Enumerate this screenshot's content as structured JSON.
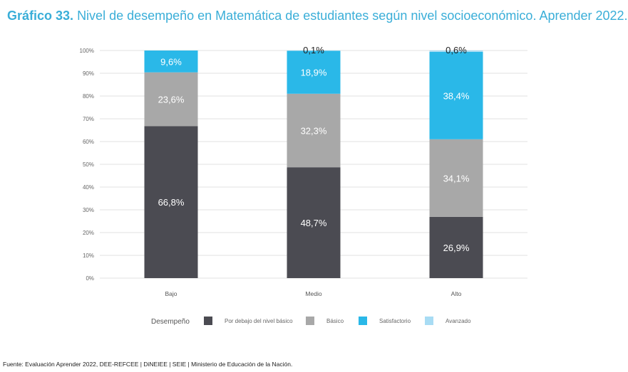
{
  "title_bold": "Gráfico 33.",
  "title_rest": "Nivel de desempeño en Matemática de estudiantes según nivel socioeconómico. Aprender 2022.",
  "source": "Fuente: Evaluación Aprender 2022, DEE-REFCEE | DiNEIEE | SEIE | Ministerio de Educación de la Nación.",
  "chart_data": {
    "type": "bar",
    "stacked": true,
    "categories": [
      "Bajo",
      "Medio",
      "Alto"
    ],
    "ylim": [
      0,
      100
    ],
    "yticks": [
      "0%",
      "10%",
      "20%",
      "30%",
      "40%",
      "50%",
      "60%",
      "70%",
      "80%",
      "90%",
      "100%"
    ],
    "legend_title": "Desempeño",
    "legend_position": "bottom",
    "series": [
      {
        "name": "Por debajo del nivel básico",
        "color": "#4b4b52",
        "values": [
          66.8,
          48.7,
          26.9
        ],
        "labels": [
          "66,8%",
          "48,7%",
          "26,9%"
        ]
      },
      {
        "name": "Básico",
        "color": "#a8a8a8",
        "values": [
          23.6,
          32.3,
          34.1
        ],
        "labels": [
          "23,6%",
          "32,3%",
          "34,1%"
        ]
      },
      {
        "name": "Satisfactorio",
        "color": "#2ab8e8",
        "values": [
          9.6,
          18.9,
          38.4
        ],
        "labels": [
          "9,6%",
          "18,9%",
          "38,4%"
        ]
      },
      {
        "name": "Avanzado",
        "color": "#a8dcf4",
        "values": [
          0,
          0.1,
          0.6
        ],
        "labels": [
          "",
          "0,1%",
          "0,6%"
        ]
      }
    ]
  }
}
